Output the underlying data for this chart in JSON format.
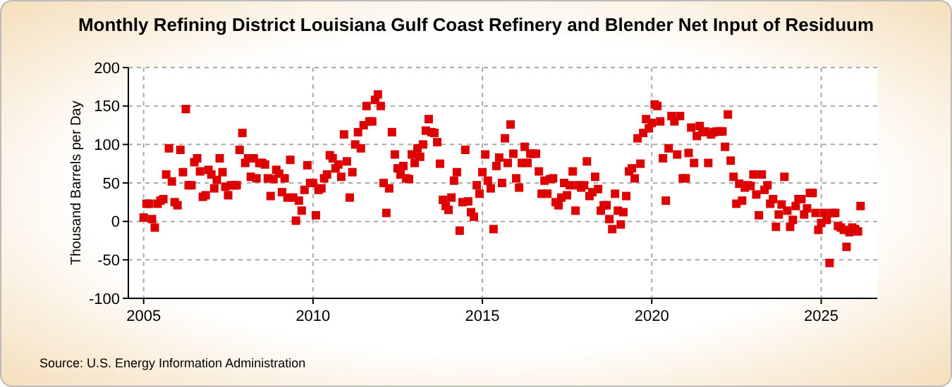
{
  "chart_data": {
    "type": "scatter",
    "title": "Monthly Refining District Louisiana Gulf Coast Refinery and Blender Net Input of Residuum",
    "ylabel": "Thousand Barrels per Day",
    "annotations": [
      "Source: U.S. Energy Information Administration"
    ],
    "marker": "square",
    "grid": true,
    "xlim": [
      "2004-07-20",
      "2026-08-28"
    ],
    "xticks": [
      {
        "value": "2005",
        "label": "2005"
      },
      {
        "value": "2010",
        "label": "2010"
      },
      {
        "value": "2015",
        "label": "2015"
      },
      {
        "value": "2020",
        "label": "2020"
      },
      {
        "value": "2025",
        "label": "2025"
      }
    ],
    "ylim": [
      -100,
      200
    ],
    "yticks": [
      -100,
      -50,
      0,
      50,
      100,
      150,
      200
    ],
    "x": [
      "2005-01",
      "2005-02",
      "2005-03",
      "2005-04",
      "2005-05",
      "2005-06",
      "2005-07",
      "2005-08",
      "2005-09",
      "2005-10",
      "2005-11",
      "2005-12",
      "2006-01",
      "2006-02",
      "2006-03",
      "2006-04",
      "2006-05",
      "2006-06",
      "2006-07",
      "2006-08",
      "2006-09",
      "2006-10",
      "2006-11",
      "2006-12",
      "2007-01",
      "2007-02",
      "2007-03",
      "2007-04",
      "2007-05",
      "2007-06",
      "2007-07",
      "2007-08",
      "2007-09",
      "2007-10",
      "2007-11",
      "2007-12",
      "2008-01",
      "2008-02",
      "2008-03",
      "2008-04",
      "2008-05",
      "2008-06",
      "2008-07",
      "2008-08",
      "2008-09",
      "2008-10",
      "2008-11",
      "2008-12",
      "2009-01",
      "2009-02",
      "2009-03",
      "2009-04",
      "2009-05",
      "2009-06",
      "2009-07",
      "2009-08",
      "2009-09",
      "2009-10",
      "2009-11",
      "2009-12",
      "2010-01",
      "2010-02",
      "2010-03",
      "2010-04",
      "2010-05",
      "2010-06",
      "2010-07",
      "2010-08",
      "2010-09",
      "2010-10",
      "2010-11",
      "2010-12",
      "2011-01",
      "2011-02",
      "2011-03",
      "2011-04",
      "2011-05",
      "2011-06",
      "2011-07",
      "2011-08",
      "2011-09",
      "2011-10",
      "2011-11",
      "2011-12",
      "2012-01",
      "2012-02",
      "2012-03",
      "2012-04",
      "2012-05",
      "2012-06",
      "2012-07",
      "2012-08",
      "2012-09",
      "2012-10",
      "2012-11",
      "2012-12",
      "2013-01",
      "2013-02",
      "2013-03",
      "2013-04",
      "2013-05",
      "2013-06",
      "2013-07",
      "2013-08",
      "2013-09",
      "2013-10",
      "2013-11",
      "2013-12",
      "2014-01",
      "2014-02",
      "2014-03",
      "2014-04",
      "2014-05",
      "2014-06",
      "2014-07",
      "2014-08",
      "2014-09",
      "2014-10",
      "2014-11",
      "2014-12",
      "2015-01",
      "2015-02",
      "2015-03",
      "2015-04",
      "2015-05",
      "2015-06",
      "2015-07",
      "2015-08",
      "2015-09",
      "2015-10",
      "2015-11",
      "2015-12",
      "2016-01",
      "2016-02",
      "2016-03",
      "2016-04",
      "2016-05",
      "2016-06",
      "2016-07",
      "2016-08",
      "2016-09",
      "2016-10",
      "2016-11",
      "2016-12",
      "2017-01",
      "2017-02",
      "2017-03",
      "2017-04",
      "2017-05",
      "2017-06",
      "2017-07",
      "2017-08",
      "2017-09",
      "2017-10",
      "2017-11",
      "2017-12",
      "2018-01",
      "2018-02",
      "2018-03",
      "2018-04",
      "2018-05",
      "2018-06",
      "2018-07",
      "2018-08",
      "2018-09",
      "2018-10",
      "2018-11",
      "2018-12",
      "2019-01",
      "2019-02",
      "2019-03",
      "2019-04",
      "2019-05",
      "2019-06",
      "2019-07",
      "2019-08",
      "2019-09",
      "2019-10",
      "2019-11",
      "2019-12",
      "2020-01",
      "2020-02",
      "2020-03",
      "2020-04",
      "2020-05",
      "2020-06",
      "2020-07",
      "2020-08",
      "2020-09",
      "2020-10",
      "2020-11",
      "2020-12",
      "2021-01",
      "2021-02",
      "2021-03",
      "2021-04",
      "2021-05",
      "2021-06",
      "2021-07",
      "2021-08",
      "2021-09",
      "2021-10",
      "2021-11",
      "2021-12",
      "2022-01",
      "2022-02",
      "2022-03",
      "2022-04",
      "2022-05",
      "2022-06",
      "2022-07",
      "2022-08",
      "2022-09",
      "2022-10",
      "2022-11",
      "2022-12",
      "2023-01",
      "2023-02",
      "2023-03",
      "2023-04",
      "2023-05",
      "2023-06",
      "2023-07",
      "2023-08",
      "2023-09",
      "2023-10",
      "2023-11",
      "2023-12",
      "2024-01",
      "2024-02",
      "2024-03",
      "2024-04",
      "2024-05",
      "2024-06",
      "2024-07",
      "2024-08",
      "2024-09",
      "2024-10",
      "2024-11",
      "2024-12",
      "2025-01",
      "2025-02",
      "2025-03",
      "2025-04",
      "2025-05",
      "2025-06",
      "2025-07",
      "2025-08",
      "2025-09",
      "2025-10",
      "2025-11",
      "2025-12",
      "2026-01",
      "2026-02",
      "2026-03"
    ],
    "series": [
      {
        "color": "#dd0000",
        "values": [
          5,
          23,
          23,
          3,
          -8,
          23,
          27,
          29,
          61,
          95,
          52,
          25,
          21,
          93,
          64,
          146,
          47,
          47,
          77,
          82,
          65,
          32,
          34,
          67,
          61,
          43,
          54,
          82,
          64,
          45,
          34,
          47,
          47,
          47,
          93,
          115,
          76,
          82,
          58,
          82,
          56,
          76,
          76,
          74,
          56,
          33,
          55,
          67,
          62,
          38,
          56,
          31,
          80,
          31,
          1,
          27,
          14,
          41,
          73,
          50,
          50,
          8,
          41,
          43,
          56,
          61,
          86,
          82,
          69,
          74,
          58,
          113,
          78,
          31,
          64,
          100,
          116,
          95,
          125,
          150,
          130,
          130,
          158,
          165,
          150,
          50,
          11,
          43,
          116,
          87,
          69,
          61,
          72,
          56,
          55,
          87,
          76,
          95,
          84,
          100,
          118,
          133,
          116,
          115,
          103,
          75,
          28,
          20,
          15,
          31,
          53,
          64,
          -12,
          25,
          93,
          26,
          12,
          6,
          47,
          36,
          64,
          87,
          53,
          43,
          -10,
          72,
          83,
          50,
          108,
          76,
          126,
          88,
          56,
          44,
          76,
          97,
          76,
          88,
          88,
          88,
          65,
          36,
          53,
          36,
          55,
          56,
          25,
          21,
          31,
          50,
          34,
          47,
          65,
          14,
          47,
          44,
          47,
          78,
          33,
          38,
          58,
          42,
          14,
          21,
          21,
          3,
          -10,
          36,
          14,
          -4,
          12,
          33,
          65,
          69,
          56,
          108,
          75,
          115,
          133,
          121,
          128,
          152,
          150,
          130,
          82,
          27,
          95,
          137,
          130,
          87,
          137,
          56,
          56,
          89,
          122,
          76,
          111,
          124,
          116,
          117,
          76,
          113,
          116,
          117,
          117,
          117,
          97,
          139,
          79,
          58,
          23,
          49,
          27,
          44,
          47,
          46,
          61,
          35,
          8,
          61,
          41,
          47,
          23,
          29,
          -7,
          9,
          22,
          58,
          14,
          -7,
          2,
          20,
          29,
          29,
          9,
          17,
          37,
          37,
          11,
          -11,
          -2,
          11,
          2,
          -54,
          11,
          11,
          -6,
          -8,
          -11,
          -33,
          -14,
          -8,
          -10,
          -13,
          20
        ]
      }
    ]
  }
}
